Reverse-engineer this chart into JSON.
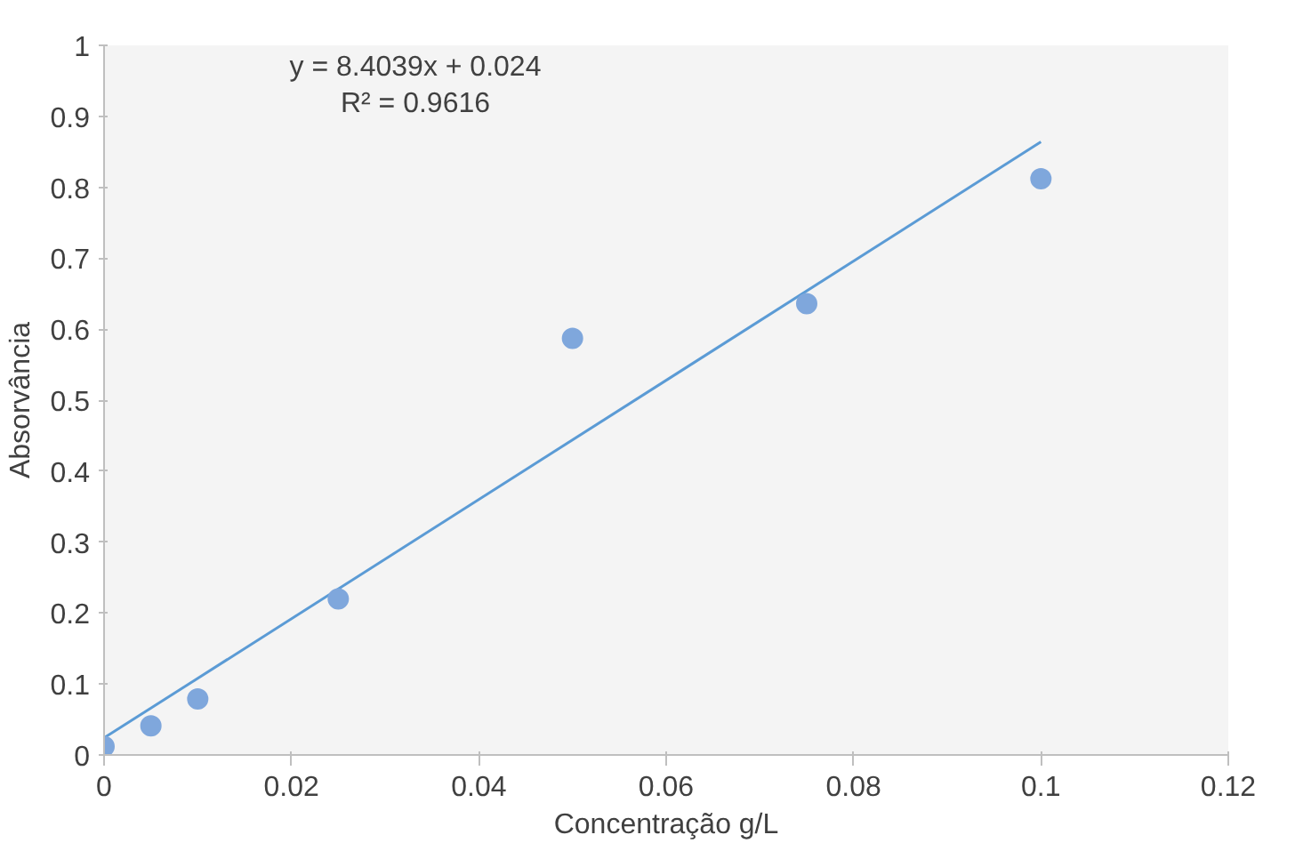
{
  "chart_data": {
    "type": "scatter",
    "xlabel": "Concentração g/L",
    "ylabel": "Absorvância",
    "x": [
      0,
      0.005,
      0.01,
      0.025,
      0.05,
      0.075,
      0.1
    ],
    "series": [
      {
        "type": "line",
        "color": "#5b9bd5",
        "x": [
          0,
          0.1
        ],
        "values": [
          0.024,
          0.864
        ],
        "marker": "none"
      },
      {
        "color": "#7fa7dc",
        "values": [
          0.012,
          0.041,
          0.079,
          0.22,
          0.587,
          0.636,
          0.812
        ],
        "marker": "circle"
      }
    ],
    "annotations": [
      "y = 8.4039x + 0.024\nR² = 0.9616"
    ],
    "xlim": [
      0,
      0.12
    ],
    "xticks": [
      {
        "value": 0,
        "label": "0"
      },
      0.02,
      0.04,
      0.06,
      0.08,
      0.1,
      0.12
    ],
    "ylim": [
      0,
      1
    ],
    "yticks": [
      {
        "value": 0,
        "label": "0"
      },
      0.1,
      0.2,
      0.3,
      0.4,
      0.5,
      0.6,
      0.7,
      0.8,
      0.9,
      {
        "value": 1,
        "label": "1"
      }
    ],
    "grid": false
  }
}
